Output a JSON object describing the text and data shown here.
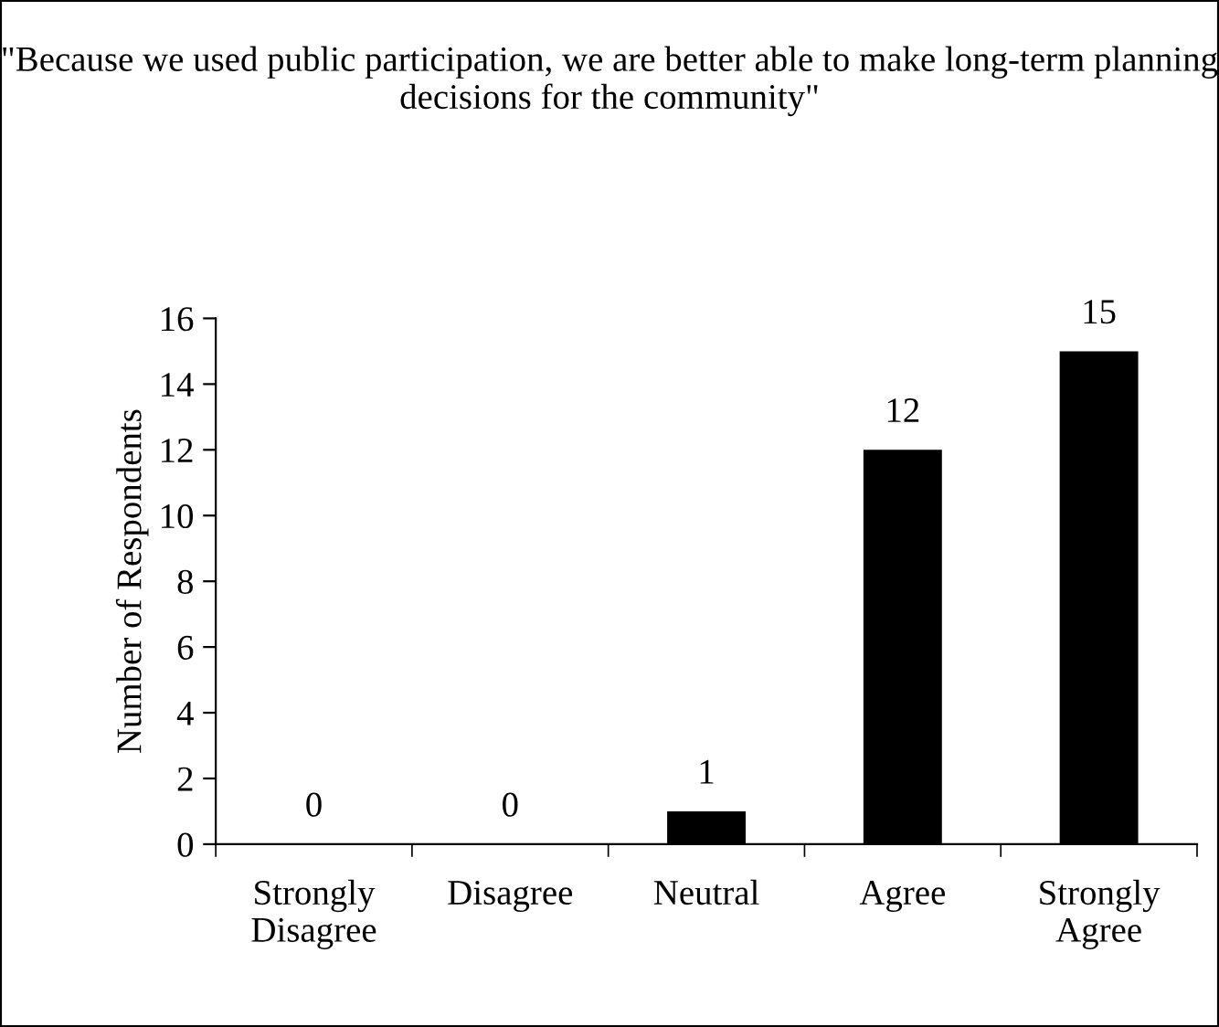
{
  "chart_data": {
    "type": "bar",
    "title": "\"Because we used public participation, we are better able to make long-term planning decisions for the community\"",
    "ylabel": "Number of Respondents",
    "categories": [
      "Strongly\nDisagree",
      "Disagree",
      "Neutral",
      "Agree",
      "Strongly\nAgree"
    ],
    "values": [
      0,
      0,
      1,
      12,
      15
    ],
    "color": "#000000",
    "ylim": [
      0,
      16
    ],
    "yticks": [
      0,
      2,
      4,
      6,
      8,
      10,
      12,
      14,
      16
    ],
    "data_labels": true,
    "grid": false,
    "legend": false
  }
}
